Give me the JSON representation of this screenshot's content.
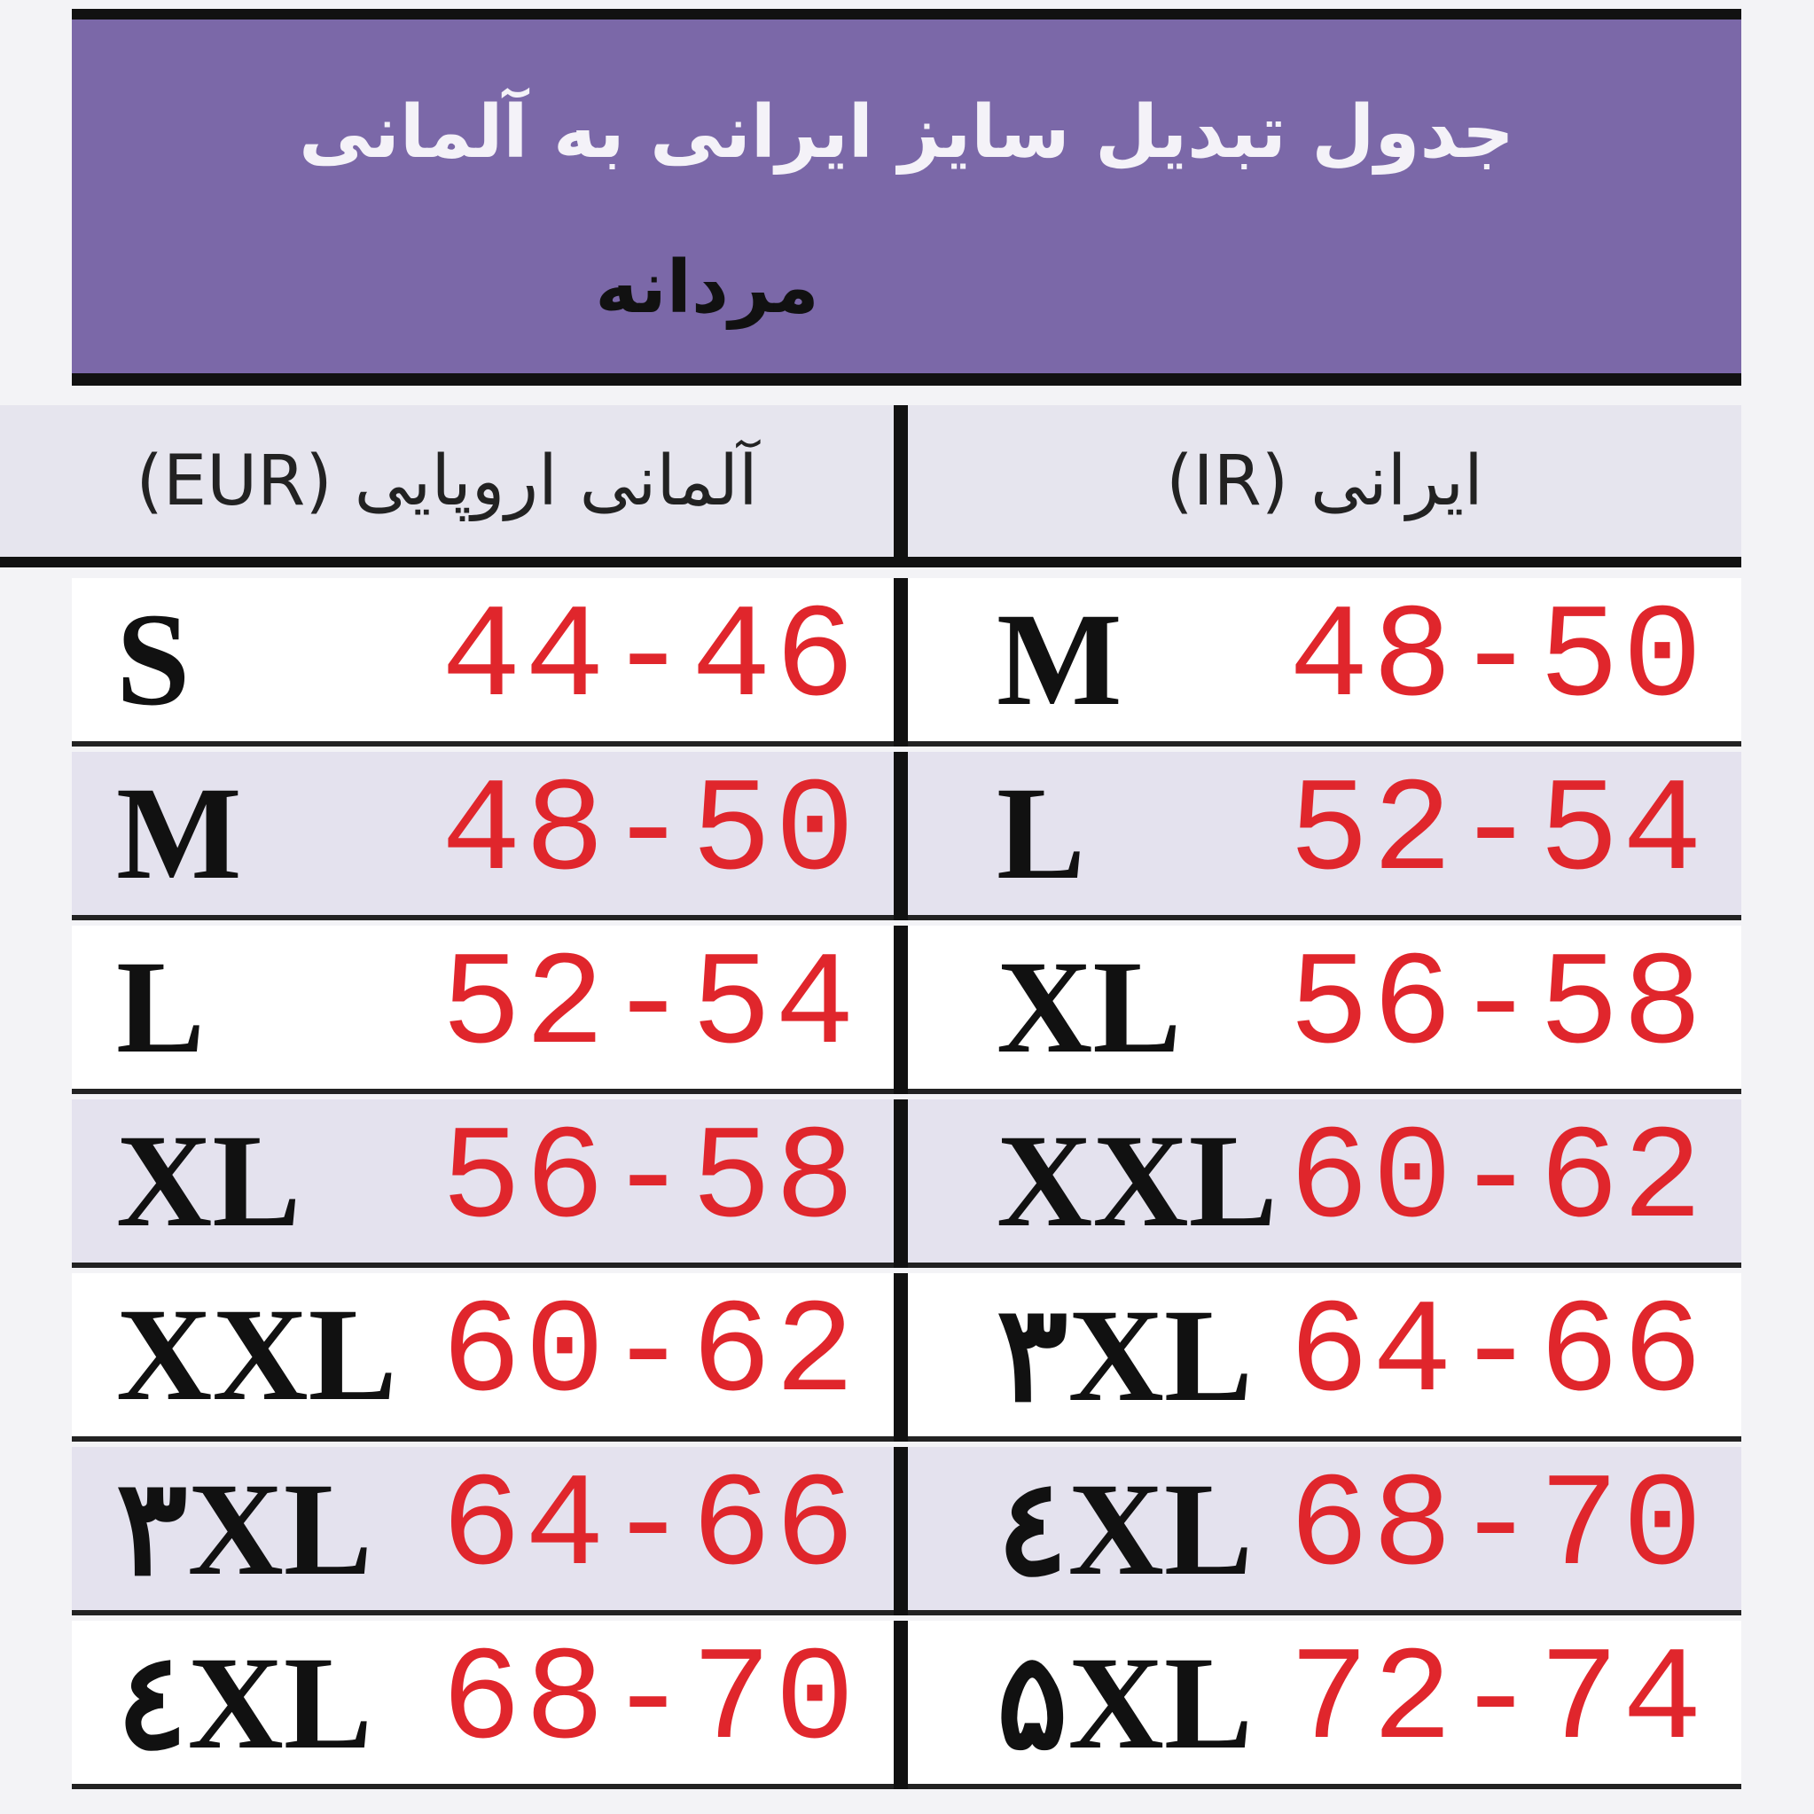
{
  "header": {
    "title": "جدول تبدیل سایز ایرانی به آلمانی",
    "subtitle": "مردانه"
  },
  "table": {
    "columns": [
      "آلمانی اروپایی (EUR)",
      "ایرانی (IR)"
    ],
    "rows": [
      [
        "S",
        "44-46",
        "M",
        "48-50"
      ],
      [
        "M",
        "48-50",
        "L",
        "52-54"
      ],
      [
        "L",
        "52-54",
        "XL",
        "56-58"
      ],
      [
        "XL",
        "56-58",
        "XXL",
        "60-62"
      ],
      [
        "XXL",
        "60-62",
        "۳XL",
        "64-66"
      ],
      [
        "۳XL",
        "64-66",
        "٤XL",
        "68-70"
      ],
      [
        "٤XL",
        "68-70",
        "۵XL",
        "72-74"
      ]
    ]
  }
}
